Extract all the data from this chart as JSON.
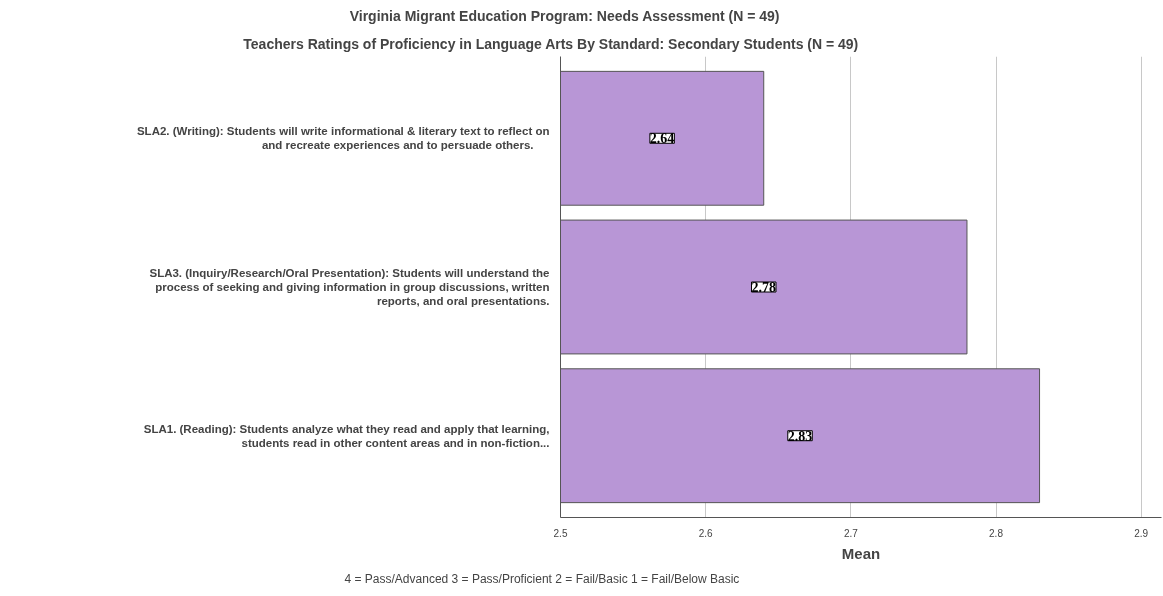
{
  "chart_data": {
    "type": "bar",
    "orientation": "horizontal",
    "title": "Virginia Migrant Education Program: Needs Assessment (N = 49)",
    "subtitle": "Teachers Ratings of Proficiency in Language Arts By Standard: Secondary Students (N = 49)",
    "xlabel": "Mean",
    "categories": [
      "SLA2. (Writing): Students will write informational & literary text to reflect on\nand recreate      experiences and to persuade others.",
      "SLA3. (Inquiry/Research/Oral Presentation): Students will understand the\nprocess of seeking and giving information in group discussions, written\nreports, and oral presentations.",
      "SLA1. (Reading): Students analyze what they read and apply that learning,\nstudents read in other content areas and in non-fiction..."
    ],
    "values": [
      2.64,
      2.78,
      2.83
    ],
    "color": "#b896d6",
    "data_labels": true,
    "xlim": [
      2.5,
      2.914
    ],
    "xticks": [
      2.5,
      2.6,
      2.7,
      2.8,
      2.9
    ],
    "grid": "x",
    "annotations": [
      "4 = Pass/Advanced   3 = Pass/Proficient   2 = Fail/Basic   1 = Fail/Below Basic"
    ]
  }
}
